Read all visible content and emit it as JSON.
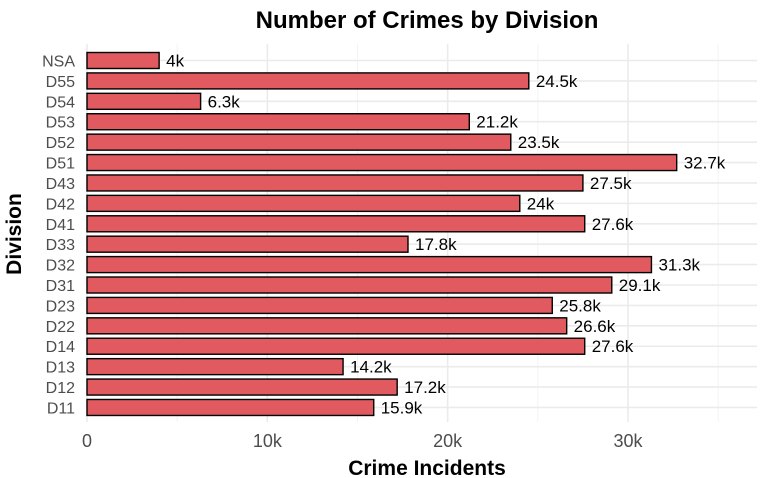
{
  "chart_data": {
    "type": "bar",
    "orientation": "horizontal",
    "title": "Number of Crimes by Division",
    "xlabel": "Crime Incidents",
    "ylabel": "Division",
    "xlim": [
      0,
      36500
    ],
    "x_ticks": [
      0,
      10000,
      20000,
      30000
    ],
    "x_tick_labels": [
      "0",
      "10k",
      "20k",
      "30k"
    ],
    "grid": true,
    "bar_color": "#e05a5f",
    "categories": [
      "NSA",
      "D55",
      "D54",
      "D53",
      "D52",
      "D51",
      "D43",
      "D42",
      "D41",
      "D33",
      "D32",
      "D31",
      "D23",
      "D22",
      "D14",
      "D13",
      "D12",
      "D11"
    ],
    "values": [
      4000,
      24500,
      6300,
      21200,
      23500,
      32700,
      27500,
      24000,
      27600,
      17800,
      31300,
      29100,
      25800,
      26600,
      27600,
      14200,
      17200,
      15900
    ],
    "labels": [
      "4k",
      "24.5k",
      "6.3k",
      "21.2k",
      "23.5k",
      "32.7k",
      "27.5k",
      "24k",
      "27.6k",
      "17.8k",
      "31.3k",
      "29.1k",
      "25.8k",
      "26.6k",
      "27.6k",
      "14.2k",
      "17.2k",
      "15.9k"
    ]
  }
}
